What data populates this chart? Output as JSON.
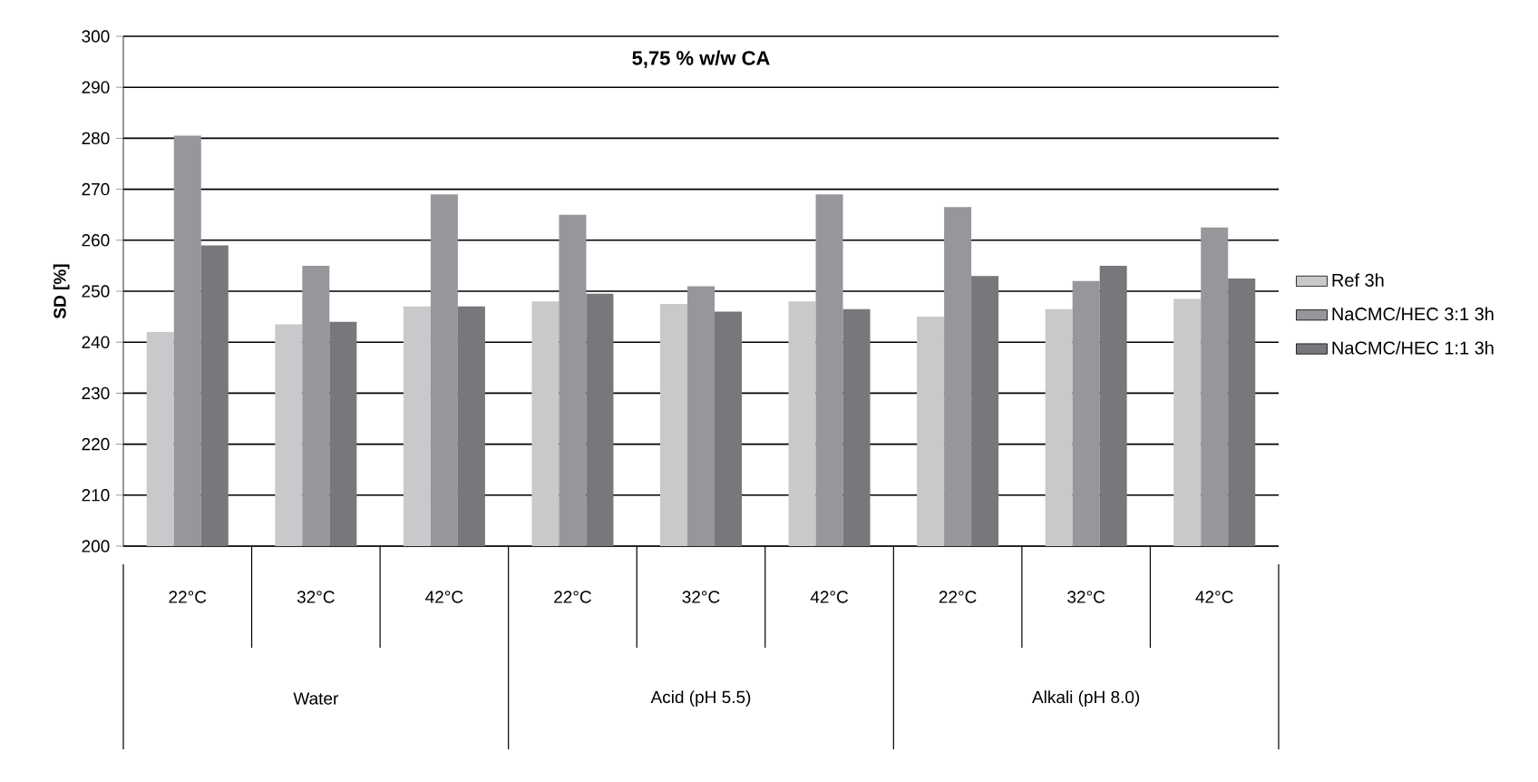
{
  "chart_data": {
    "type": "bar",
    "title": "5,75 % w/w CA",
    "ylabel": "SD [%]",
    "categories": [
      "22°C",
      "32°C",
      "42°C",
      "22°C",
      "32°C",
      "42°C",
      "22°C",
      "32°C",
      "42°C"
    ],
    "annotations": [
      "Water",
      "Acid (pH 5.5)",
      "Alkali (pH 8.0)"
    ],
    "series": [
      {
        "name": "Ref 3h",
        "color": "#c8c9cb",
        "values": [
          242,
          243.5,
          247,
          248,
          247.5,
          248,
          245,
          246.5,
          248.5
        ]
      },
      {
        "name": "NaCMC/HEC 3:1 3h",
        "color": "#96979b",
        "values": [
          280.5,
          255,
          269,
          265,
          251,
          269,
          266.5,
          252,
          262.5
        ]
      },
      {
        "name": "NaCMC/HEC 1:1 3h",
        "color": "#77787c",
        "values": [
          259,
          244,
          247,
          249.5,
          246,
          246.5,
          253,
          255,
          252.5
        ]
      }
    ],
    "ylim": [
      200,
      300
    ],
    "yticks": [
      200,
      210,
      220,
      230,
      240,
      250,
      260,
      270,
      280,
      290,
      300
    ],
    "grid": "y",
    "legend": "right"
  }
}
